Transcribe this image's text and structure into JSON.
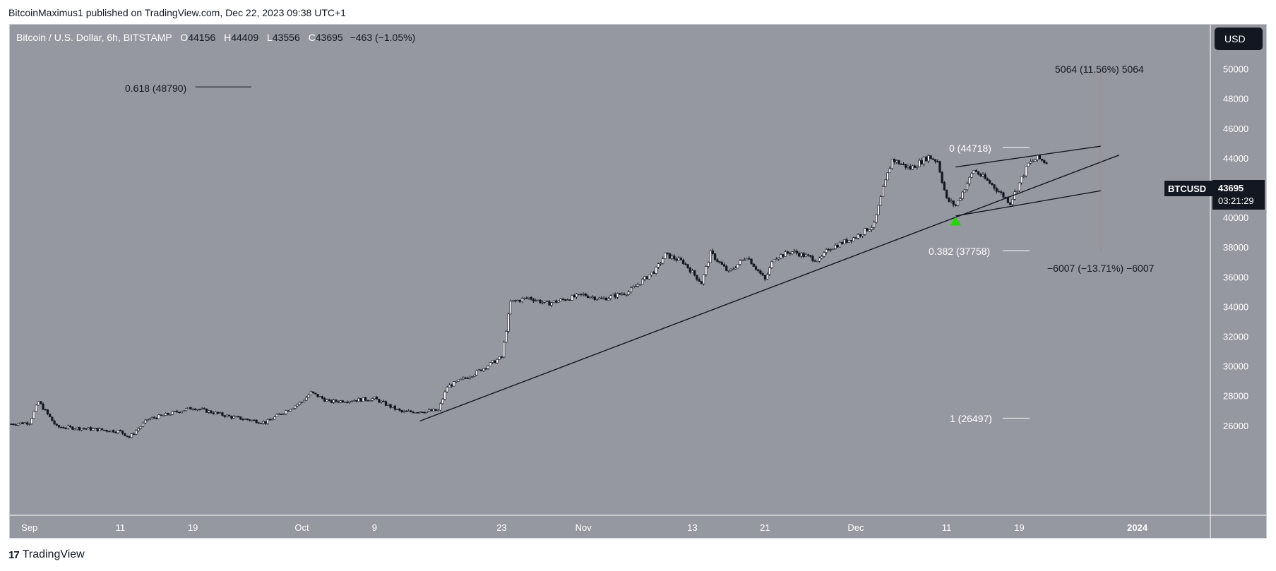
{
  "header": {
    "published": "BitcoinMaximus1 published on TradingView.com, Dec 22, 2023 09:38 UTC+1"
  },
  "legend": {
    "symbol": "Bitcoin / U.S. Dollar, 6h, BITSTAMP",
    "o_label": "O",
    "o": "44156",
    "h_label": "H",
    "h": "44409",
    "l_label": "L",
    "l": "43556",
    "c_label": "C",
    "c": "43695",
    "change": "−463 (−1.05%)"
  },
  "currency_button": "USD",
  "price_tag": {
    "symbol": "BTCUSD",
    "price": "43695",
    "countdown": "03:21:29"
  },
  "annotations": {
    "fib_0618": "0.618 (48790)",
    "fib_0": "0 (44718)",
    "fib_0382": "0.382 (37758)",
    "fib_1": "1 (26497)",
    "measure_up": "5064 (11.56%) 5064",
    "measure_down": "−6007 (−13.71%) −6007"
  },
  "footer": {
    "brand": "TradingView",
    "brand_mark": "17"
  },
  "colors": {
    "background": "#9598a1",
    "candle_body": "#ffffff",
    "candle_outline": "#131722",
    "trendline": "#131722",
    "signal_arrow": "#22d600",
    "price_tag_bg": "#131722"
  },
  "chart_data": {
    "type": "candlestick",
    "title": "Bitcoin / U.S. Dollar, 6h, BITSTAMP",
    "xlabel": "",
    "ylabel": "",
    "x_ticks": [
      "Sep",
      "11",
      "19",
      "Oct",
      "9",
      "23",
      "Nov",
      "13",
      "21",
      "Dec",
      "11",
      "19",
      "2024"
    ],
    "y_ticks": [
      26000,
      28000,
      30000,
      32000,
      34000,
      36000,
      38000,
      40000,
      42000,
      44000,
      46000,
      48000,
      50000
    ],
    "ylim": [
      24600,
      51400
    ],
    "grid": false,
    "series": [
      {
        "name": "BTCUSD",
        "close_path": [
          [
            "2023-08-30",
            26100
          ],
          [
            "2023-09-01",
            26200
          ],
          [
            "2023-09-02",
            27600
          ],
          [
            "2023-09-04",
            25900
          ],
          [
            "2023-09-07",
            25800
          ],
          [
            "2023-09-11",
            25600
          ],
          [
            "2023-09-12",
            25200
          ],
          [
            "2023-09-14",
            26400
          ],
          [
            "2023-09-19",
            27200
          ],
          [
            "2023-09-23",
            26600
          ],
          [
            "2023-09-27",
            26200
          ],
          [
            "2023-10-01",
            27600
          ],
          [
            "2023-10-02",
            28200
          ],
          [
            "2023-10-04",
            27600
          ],
          [
            "2023-10-09",
            27800
          ],
          [
            "2023-10-12",
            26900
          ],
          [
            "2023-10-16",
            27000
          ],
          [
            "2023-10-17",
            28600
          ],
          [
            "2023-10-20",
            29500
          ],
          [
            "2023-10-23",
            30600
          ],
          [
            "2023-10-24",
            34300
          ],
          [
            "2023-10-26",
            34600
          ],
          [
            "2023-10-28",
            34200
          ],
          [
            "2023-11-01",
            34800
          ],
          [
            "2023-11-03",
            34500
          ],
          [
            "2023-11-06",
            35000
          ],
          [
            "2023-11-09",
            36500
          ],
          [
            "2023-11-10",
            37500
          ],
          [
            "2023-11-12",
            37000
          ],
          [
            "2023-11-14",
            35600
          ],
          [
            "2023-11-15",
            37600
          ],
          [
            "2023-11-17",
            36300
          ],
          [
            "2023-11-19",
            37400
          ],
          [
            "2023-11-21",
            35800
          ],
          [
            "2023-11-22",
            37300
          ],
          [
            "2023-11-24",
            37700
          ],
          [
            "2023-11-27",
            37100
          ],
          [
            "2023-11-28",
            37900
          ],
          [
            "2023-12-01",
            38700
          ],
          [
            "2023-12-03",
            39500
          ],
          [
            "2023-12-04",
            41900
          ],
          [
            "2023-12-05",
            43900
          ],
          [
            "2023-12-07",
            43300
          ],
          [
            "2023-12-09",
            44100
          ],
          [
            "2023-12-10",
            43800
          ],
          [
            "2023-12-11",
            41200
          ],
          [
            "2023-12-12",
            40800
          ],
          [
            "2023-12-14",
            43200
          ],
          [
            "2023-12-16",
            42200
          ],
          [
            "2023-12-18",
            41000
          ],
          [
            "2023-12-19",
            42300
          ],
          [
            "2023-12-20",
            43600
          ],
          [
            "2023-12-21",
            44000
          ],
          [
            "2023-12-22",
            43695
          ]
        ],
        "last": {
          "open": 44156,
          "high": 44409,
          "low": 43556,
          "close": 43695
        }
      }
    ],
    "drawings": [
      {
        "kind": "trendline",
        "from": [
          "2023-10-14",
          26300
        ],
        "to": [
          "2023-12-30",
          44200
        ]
      },
      {
        "kind": "trendline",
        "from": [
          "2023-12-12",
          43400
        ],
        "to": [
          "2023-12-28",
          44800
        ]
      },
      {
        "kind": "trendline",
        "from": [
          "2023-12-12",
          40100
        ],
        "to": [
          "2023-12-28",
          41800
        ]
      },
      {
        "kind": "fib_level",
        "label": "0.618 (48790)",
        "price": 48790
      },
      {
        "kind": "fib_level",
        "label": "0 (44718)",
        "price": 44718
      },
      {
        "kind": "fib_level",
        "label": "0.382 (37758)",
        "price": 37758
      },
      {
        "kind": "fib_level",
        "label": "1 (26497)",
        "price": 26497
      },
      {
        "kind": "up_arrow",
        "at": [
          "2023-12-12",
          39700
        ]
      }
    ]
  }
}
